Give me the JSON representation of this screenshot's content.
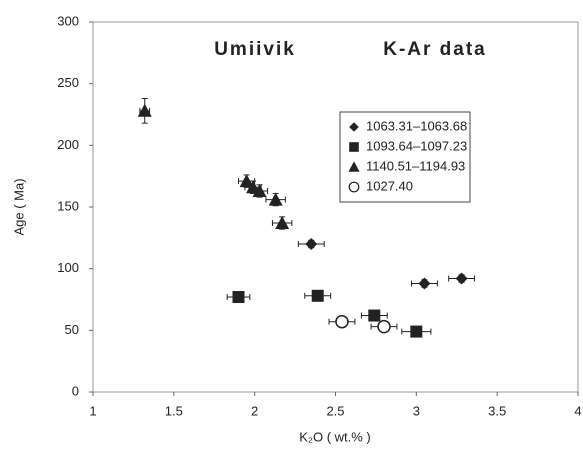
{
  "chart_data": {
    "type": "scatter",
    "title": "Umiivik",
    "subtitle": "K-Ar data",
    "x_label": "K₂O ( wt.% )",
    "y_label": "Age ( Ma)",
    "xlim": [
      1,
      4
    ],
    "xticks": [
      1,
      1.5,
      2,
      2.5,
      3,
      3.5,
      4
    ],
    "ylim": [
      0,
      300
    ],
    "yticks": [
      0,
      50,
      100,
      150,
      200,
      250,
      300
    ],
    "grid": false,
    "legend": "upper right",
    "series": [
      {
        "name": "1063.31–1063.68",
        "color": "#222222",
        "marker": "diamond",
        "x": [
          2.35,
          3.05,
          3.28
        ],
        "y": [
          120,
          88,
          92
        ],
        "xerr": [
          0.08,
          0.08,
          0.08
        ],
        "yerr": [
          3,
          3,
          3
        ]
      },
      {
        "name": "1093.64–1097.23",
        "color": "#222222",
        "marker": "square",
        "x": [
          1.9,
          2.39,
          2.74,
          3.0
        ],
        "y": [
          77,
          78,
          62,
          49
        ],
        "xerr": [
          0.07,
          0.08,
          0.08,
          0.09
        ],
        "yerr": [
          3,
          3,
          3,
          3
        ]
      },
      {
        "name": "1140.51–1194.93",
        "color": "#222222",
        "marker": "triangle",
        "x": [
          1.32,
          1.95,
          1.99,
          2.03,
          2.13,
          2.17
        ],
        "y": [
          228,
          171,
          166,
          163,
          156,
          137
        ],
        "xerr": [
          0.03,
          0.05,
          0.05,
          0.05,
          0.06,
          0.06
        ],
        "yerr": [
          10,
          5,
          5,
          5,
          5,
          5
        ]
      },
      {
        "name": "1027.40",
        "color": "#222222",
        "marker": "circle",
        "x": [
          2.54,
          2.8
        ],
        "y": [
          57,
          53
        ],
        "xerr": [
          0.08,
          0.08
        ],
        "yerr": [
          3,
          3
        ]
      }
    ]
  }
}
